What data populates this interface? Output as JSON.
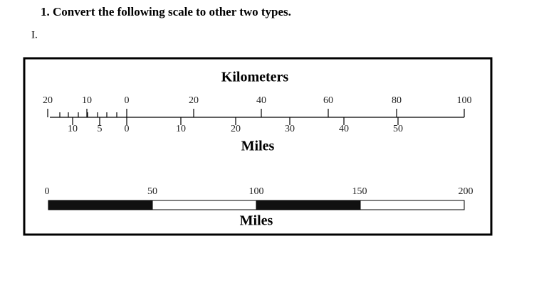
{
  "heading": "1. Convert the following scale to other two types.",
  "item": "I.",
  "line_scale": {
    "unit_top": "Kilometers",
    "top_labels": [
      "20",
      "10",
      "0",
      "20",
      "40",
      "60",
      "80",
      "100"
    ],
    "bottom_labels": [
      "10",
      "5",
      "0",
      "10",
      "20",
      "30",
      "40",
      "50"
    ],
    "unit_bottom": "Miles"
  },
  "bar_scale": {
    "labels": [
      "0",
      "50",
      "100",
      "150",
      "200"
    ],
    "unit": "Miles"
  }
}
